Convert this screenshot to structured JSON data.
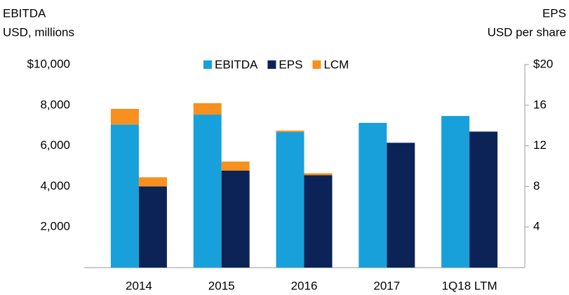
{
  "chart_data": {
    "type": "bar",
    "y_label": [
      "EBITDA",
      "USD, millions"
    ],
    "y2_label": [
      "EPS",
      "USD per share"
    ],
    "categories": [
      "2014",
      "2015",
      "2016",
      "2017",
      "1Q18 LTM"
    ],
    "series": [
      {
        "name": "EBITDA",
        "color": "#18a0db",
        "axis": "y",
        "values": [
          7050,
          7540,
          6680,
          7130,
          7470
        ]
      },
      {
        "name": "EPS",
        "color": "#0c2357",
        "axis": "y2",
        "values": [
          8.0,
          9.55,
          9.1,
          12.3,
          13.4
        ]
      },
      {
        "name": "LCM",
        "color": "#f7901e",
        "values": [
          770,
          560,
          70,
          null,
          null
        ],
        "y2_values": [
          0.9,
          0.9,
          0.2,
          null,
          null
        ]
      }
    ],
    "ylim": [
      0,
      10000
    ],
    "yticks": [
      {
        "value": 2000,
        "label": "2,000"
      },
      {
        "value": 4000,
        "label": "4,000"
      },
      {
        "value": 6000,
        "label": "6,000"
      },
      {
        "value": 8000,
        "label": "8,000"
      },
      {
        "value": 10000,
        "label": "$10,000"
      }
    ],
    "y2lim": [
      0,
      20
    ],
    "y2ticks": [
      4,
      8,
      12,
      16,
      {
        "value": 20,
        "label": "$20"
      }
    ],
    "legend": "top"
  }
}
